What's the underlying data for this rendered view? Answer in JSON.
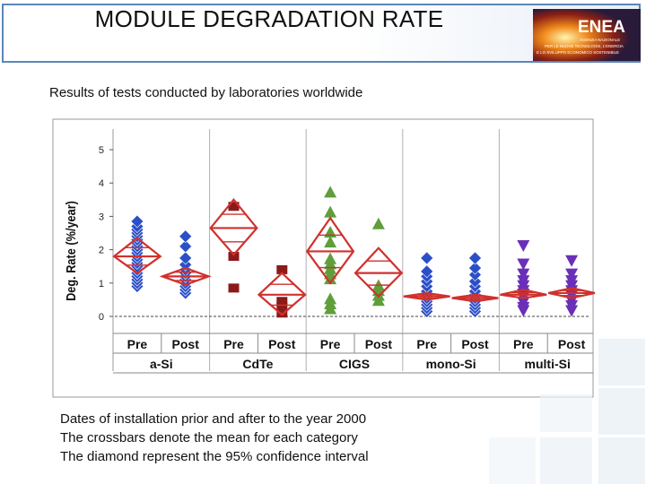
{
  "page": {
    "title": "MODULE DEGRADATION RATE",
    "subtitle": "Results of tests conducted by laboratories worldwide",
    "notes": [
      "Dates of installation prior and after to the year 2000",
      "The crossbars denote the mean for each category",
      "The diamond represent the 95% confidence interval"
    ],
    "logo": {
      "wordmark": "ENEA",
      "lines": [
        "AGENZIA NAZIONALE",
        "PER LE NUOVE TECNOLOGIE, L'ENERGIA",
        "E LO SVILUPPO ECONOMICO SOSTENIBILE"
      ]
    }
  },
  "chart_data": {
    "type": "scatter",
    "title": "",
    "xlabel": "",
    "ylabel": "Deg. Rate (%/year)",
    "ylim": [
      0,
      5
    ],
    "yticks": [
      0,
      1,
      2,
      3,
      4,
      5
    ],
    "grid": false,
    "reference_line": 0,
    "technologies": [
      "a-Si",
      "CdTe",
      "CIGS",
      "mono-Si",
      "multi-Si"
    ],
    "periods": [
      "Pre",
      "Post"
    ],
    "groups": [
      {
        "technology": "a-Si",
        "period": "Pre",
        "marker": "diamond",
        "color": "#2b4fc7",
        "mean": 1.8,
        "ci": [
          1.3,
          2.35
        ],
        "points": [
          0.9,
          1.0,
          1.1,
          1.2,
          1.3,
          1.4,
          1.5,
          1.6,
          1.7,
          1.8,
          1.9,
          2.0,
          2.1,
          2.2,
          2.3,
          2.4,
          2.5,
          2.6,
          2.7,
          2.85
        ]
      },
      {
        "technology": "a-Si",
        "period": "Post",
        "marker": "diamond",
        "color": "#2b4fc7",
        "mean": 1.2,
        "ci": [
          0.95,
          1.45
        ],
        "points": [
          0.7,
          0.8,
          0.9,
          1.0,
          1.1,
          1.2,
          1.3,
          1.4,
          1.55,
          1.75,
          2.1,
          2.4
        ]
      },
      {
        "technology": "CdTe",
        "period": "Pre",
        "marker": "square",
        "color": "#8b1a1a",
        "mean": 2.65,
        "ci": [
          1.85,
          3.5
        ],
        "points": [
          0.85,
          1.8,
          3.3
        ]
      },
      {
        "technology": "CdTe",
        "period": "Post",
        "marker": "square",
        "color": "#8b1a1a",
        "mean": 0.65,
        "ci": [
          0.05,
          1.3
        ],
        "points": [
          0.1,
          0.3,
          0.45,
          1.4
        ]
      },
      {
        "technology": "CIGS",
        "period": "Pre",
        "marker": "triangle",
        "color": "#5f9e3a",
        "mean": 1.95,
        "ci": [
          1.0,
          2.95
        ],
        "points": [
          0.2,
          0.35,
          0.5,
          1.1,
          1.25,
          1.4,
          1.55,
          1.7,
          2.2,
          2.5,
          3.1,
          3.7
        ]
      },
      {
        "technology": "CIGS",
        "period": "Post",
        "marker": "triangle",
        "color": "#5f9e3a",
        "mean": 1.3,
        "ci": [
          0.6,
          2.05
        ],
        "points": [
          0.45,
          0.6,
          0.75,
          0.9,
          2.75
        ]
      },
      {
        "technology": "mono-Si",
        "period": "Pre",
        "marker": "diamond",
        "color": "#2b4fc7",
        "mean": 0.6,
        "ci": [
          0.5,
          0.7
        ],
        "points": [
          0.15,
          0.25,
          0.35,
          0.45,
          0.55,
          0.65,
          0.75,
          0.9,
          1.05,
          1.2,
          1.35,
          1.75
        ]
      },
      {
        "technology": "mono-Si",
        "period": "Post",
        "marker": "diamond",
        "color": "#2b4fc7",
        "mean": 0.55,
        "ci": [
          0.45,
          0.65
        ],
        "points": [
          0.15,
          0.25,
          0.35,
          0.45,
          0.55,
          0.65,
          0.75,
          0.9,
          1.05,
          1.25,
          1.45,
          1.75
        ]
      },
      {
        "technology": "multi-Si",
        "period": "Pre",
        "marker": "triangle-down",
        "color": "#6a2fb8",
        "mean": 0.65,
        "ci": [
          0.55,
          0.8
        ],
        "points": [
          0.2,
          0.3,
          0.45,
          0.6,
          0.7,
          0.8,
          0.95,
          1.1,
          1.3,
          1.6,
          2.15
        ]
      },
      {
        "technology": "multi-Si",
        "period": "Post",
        "marker": "triangle-down",
        "color": "#6a2fb8",
        "mean": 0.7,
        "ci": [
          0.55,
          0.85
        ],
        "points": [
          0.2,
          0.35,
          0.5,
          0.65,
          0.8,
          0.95,
          1.1,
          1.3,
          1.7
        ]
      }
    ]
  }
}
